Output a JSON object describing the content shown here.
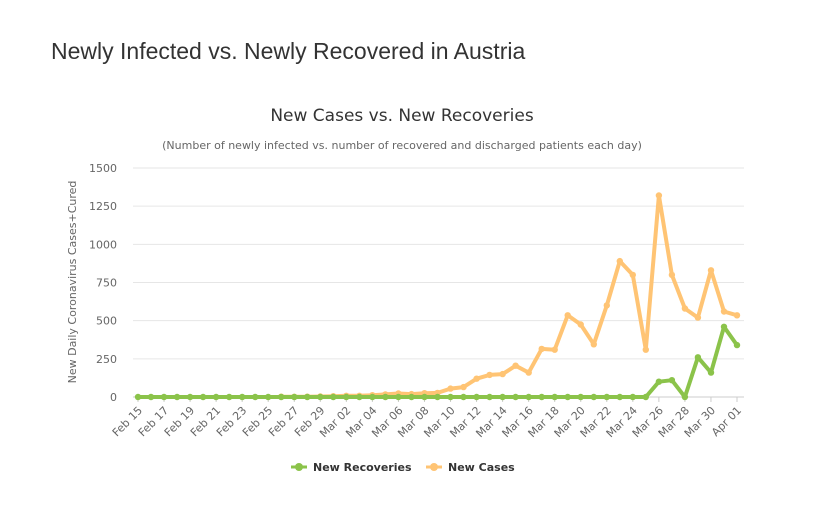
{
  "page": {
    "heading": "Newly Infected vs. Newly Recovered in Austria"
  },
  "chart_data": {
    "type": "line",
    "title": "New Cases vs. New Recoveries",
    "subtitle": "(Number of newly infected vs. number of recovered and discharged patients each day)",
    "xlabel": "",
    "ylabel": "New Daily Coronavirus Cases+Cured",
    "ylim": [
      0,
      1500
    ],
    "yticks": [
      0,
      250,
      500,
      750,
      1000,
      1250,
      1500
    ],
    "grid": true,
    "legend_position": "bottom-center",
    "x": [
      "Feb 15",
      "Feb 16",
      "Feb 17",
      "Feb 18",
      "Feb 19",
      "Feb 20",
      "Feb 21",
      "Feb 22",
      "Feb 23",
      "Feb 24",
      "Feb 25",
      "Feb 26",
      "Feb 27",
      "Feb 28",
      "Feb 29",
      "Mar 01",
      "Mar 02",
      "Mar 03",
      "Mar 04",
      "Mar 05",
      "Mar 06",
      "Mar 07",
      "Mar 08",
      "Mar 09",
      "Mar 10",
      "Mar 11",
      "Mar 12",
      "Mar 13",
      "Mar 14",
      "Mar 15",
      "Mar 16",
      "Mar 17",
      "Mar 18",
      "Mar 19",
      "Mar 20",
      "Mar 21",
      "Mar 22",
      "Mar 23",
      "Mar 24",
      "Mar 25",
      "Mar 26",
      "Mar 27",
      "Mar 28",
      "Mar 29",
      "Mar 30",
      "Mar 31",
      "Apr 01"
    ],
    "x_tick_labels": [
      "Feb 15",
      "Feb 17",
      "Feb 19",
      "Feb 21",
      "Feb 23",
      "Feb 25",
      "Feb 27",
      "Feb 29",
      "Mar 02",
      "Mar 04",
      "Mar 06",
      "Mar 08",
      "Mar 10",
      "Mar 12",
      "Mar 14",
      "Mar 16",
      "Mar 18",
      "Mar 20",
      "Mar 22",
      "Mar 24",
      "Mar 26",
      "Mar 28",
      "Mar 30",
      "Apr 01"
    ],
    "series": [
      {
        "name": "New Recoveries",
        "color": "#8bc34a",
        "values": [
          0,
          0,
          0,
          0,
          0,
          0,
          0,
          0,
          0,
          0,
          0,
          0,
          0,
          0,
          0,
          0,
          0,
          0,
          0,
          0,
          0,
          0,
          0,
          0,
          0,
          0,
          0,
          0,
          0,
          0,
          0,
          0,
          0,
          0,
          0,
          0,
          0,
          0,
          0,
          0,
          100,
          110,
          0,
          260,
          160,
          460,
          340
        ]
      },
      {
        "name": "New Cases",
        "color": "#ffc474",
        "values": [
          null,
          null,
          null,
          null,
          null,
          null,
          null,
          null,
          null,
          null,
          null,
          2,
          1,
          2,
          3,
          5,
          8,
          8,
          12,
          17,
          23,
          19,
          25,
          27,
          55,
          65,
          120,
          145,
          150,
          205,
          160,
          315,
          310,
          535,
          475,
          345,
          600,
          890,
          800,
          310,
          1320,
          800,
          580,
          520,
          830,
          560,
          535
        ]
      }
    ]
  }
}
